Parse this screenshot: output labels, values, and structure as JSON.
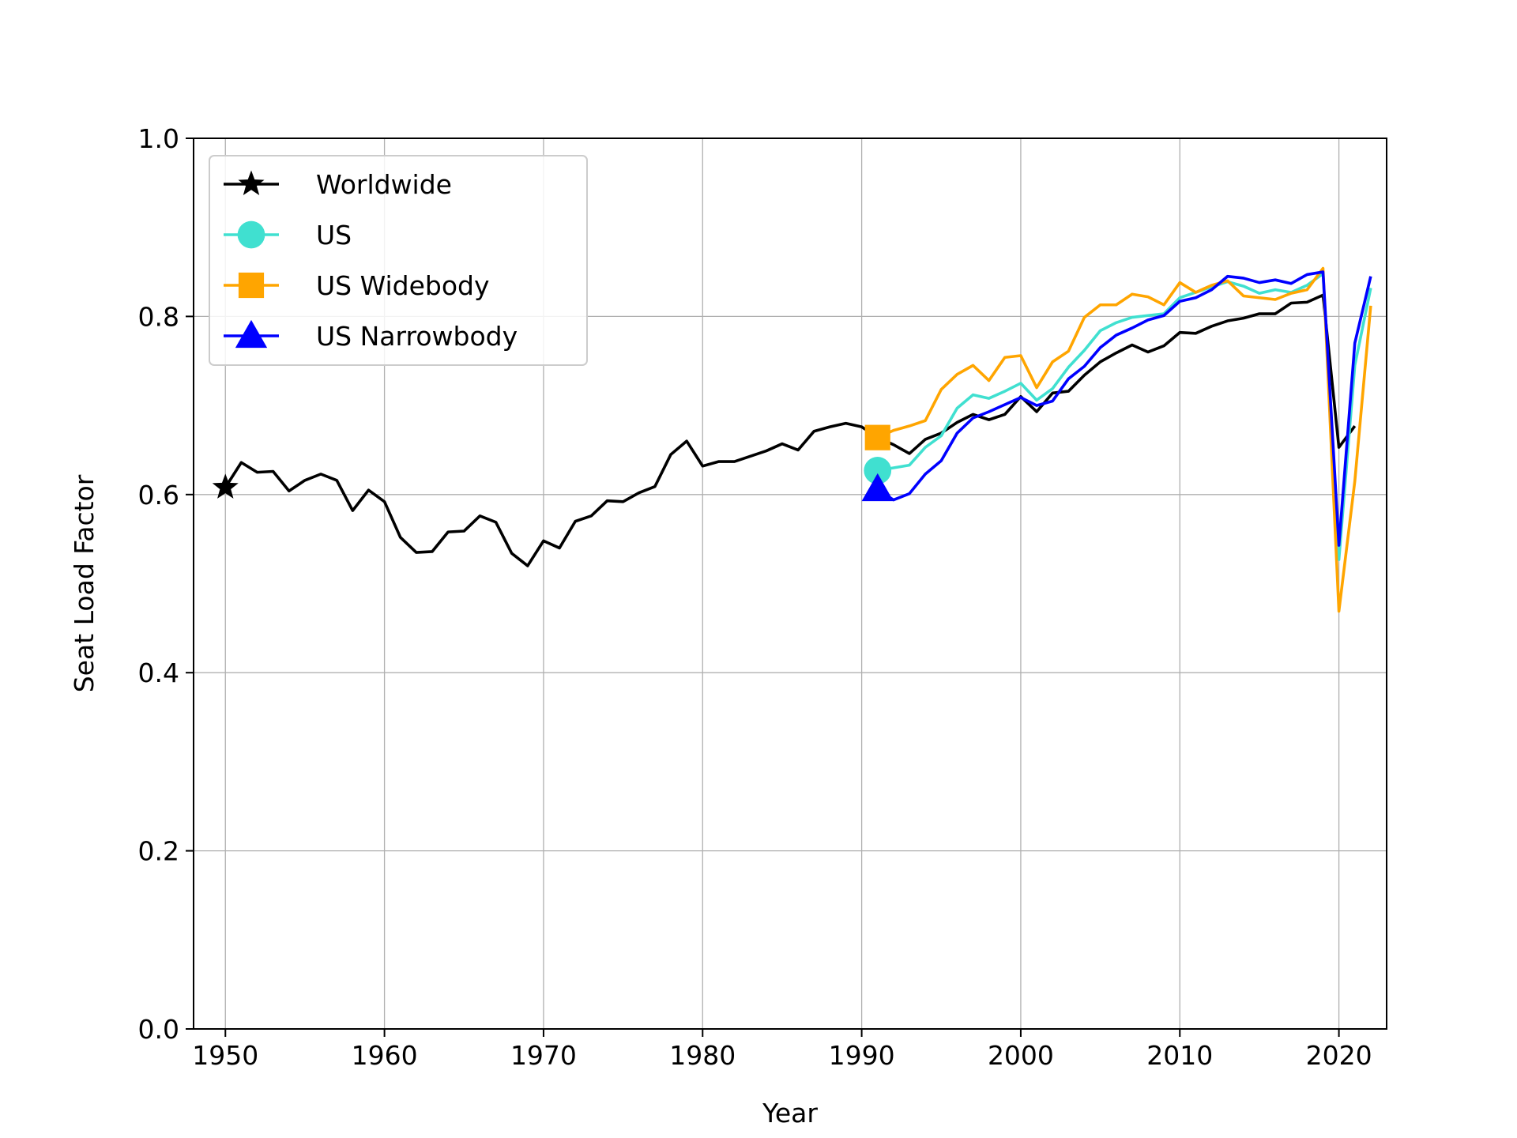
{
  "chart_data": {
    "type": "line",
    "xlabel": "Year",
    "ylabel": "Seat Load Factor",
    "xlim": [
      1948,
      2023
    ],
    "ylim": [
      0.0,
      1.0
    ],
    "x_ticks": [
      1950,
      1960,
      1970,
      1980,
      1990,
      2000,
      2010,
      2020
    ],
    "y_ticks": [
      0.0,
      0.2,
      0.4,
      0.6,
      0.8,
      1.0
    ],
    "y_tick_labels": [
      "0.0",
      "0.2",
      "0.4",
      "0.6",
      "0.8",
      "1.0"
    ],
    "grid": true,
    "legend_position": "top-left",
    "series": [
      {
        "name": "Worldwide",
        "color": "#000000",
        "marker": "star",
        "x": [
          1950,
          1951,
          1952,
          1953,
          1954,
          1955,
          1956,
          1957,
          1958,
          1959,
          1960,
          1961,
          1962,
          1963,
          1964,
          1965,
          1966,
          1967,
          1968,
          1969,
          1970,
          1971,
          1972,
          1973,
          1974,
          1975,
          1976,
          1977,
          1978,
          1979,
          1980,
          1981,
          1982,
          1983,
          1984,
          1985,
          1986,
          1987,
          1988,
          1989,
          1990,
          1991,
          1992,
          1993,
          1994,
          1995,
          1996,
          1997,
          1998,
          1999,
          2000,
          2001,
          2002,
          2003,
          2004,
          2005,
          2006,
          2007,
          2008,
          2009,
          2010,
          2011,
          2012,
          2013,
          2014,
          2015,
          2016,
          2017,
          2018,
          2019,
          2020,
          2021
        ],
        "values": [
          0.608,
          0.636,
          0.625,
          0.626,
          0.604,
          0.616,
          0.623,
          0.616,
          0.582,
          0.605,
          0.592,
          0.552,
          0.535,
          0.536,
          0.558,
          0.559,
          0.576,
          0.569,
          0.534,
          0.52,
          0.548,
          0.54,
          0.57,
          0.576,
          0.593,
          0.592,
          0.602,
          0.609,
          0.645,
          0.66,
          0.632,
          0.637,
          0.637,
          0.643,
          0.649,
          0.657,
          0.65,
          0.671,
          0.676,
          0.68,
          0.676,
          0.664,
          0.656,
          0.646,
          0.662,
          0.669,
          0.681,
          0.69,
          0.684,
          0.69,
          0.71,
          0.693,
          0.714,
          0.716,
          0.734,
          0.749,
          0.759,
          0.768,
          0.76,
          0.767,
          0.782,
          0.781,
          0.789,
          0.795,
          0.798,
          0.803,
          0.803,
          0.815,
          0.816,
          0.824,
          0.653,
          0.677
        ]
      },
      {
        "name": "US",
        "color": "#40e0d0",
        "marker": "circle",
        "x": [
          1991,
          1992,
          1993,
          1994,
          1995,
          1996,
          1997,
          1998,
          1999,
          2000,
          2001,
          2002,
          2003,
          2004,
          2005,
          2006,
          2007,
          2008,
          2009,
          2010,
          2011,
          2012,
          2013,
          2014,
          2015,
          2016,
          2017,
          2018,
          2019,
          2020,
          2021,
          2022
        ],
        "values": [
          0.627,
          0.63,
          0.633,
          0.653,
          0.666,
          0.697,
          0.712,
          0.708,
          0.716,
          0.725,
          0.706,
          0.719,
          0.743,
          0.762,
          0.784,
          0.793,
          0.799,
          0.801,
          0.803,
          0.821,
          0.827,
          0.833,
          0.839,
          0.834,
          0.826,
          0.83,
          0.827,
          0.835,
          0.848,
          0.527,
          0.745,
          0.832
        ]
      },
      {
        "name": "US Widebody",
        "color": "#ffa500",
        "marker": "square",
        "x": [
          1991,
          1992,
          1993,
          1994,
          1995,
          1996,
          1997,
          1998,
          1999,
          2000,
          2001,
          2002,
          2003,
          2004,
          2005,
          2006,
          2007,
          2008,
          2009,
          2010,
          2011,
          2012,
          2013,
          2014,
          2015,
          2016,
          2017,
          2018,
          2019,
          2020,
          2021,
          2022
        ],
        "values": [
          0.664,
          0.672,
          0.677,
          0.683,
          0.718,
          0.735,
          0.745,
          0.728,
          0.754,
          0.756,
          0.72,
          0.749,
          0.761,
          0.799,
          0.813,
          0.813,
          0.825,
          0.822,
          0.813,
          0.838,
          0.827,
          0.835,
          0.84,
          0.823,
          0.821,
          0.819,
          0.826,
          0.83,
          0.854,
          0.469,
          0.615,
          0.812
        ]
      },
      {
        "name": "US Narrowbody",
        "color": "#0000ff",
        "marker": "triangle",
        "x": [
          1991,
          1992,
          1993,
          1994,
          1995,
          1996,
          1997,
          1998,
          1999,
          2000,
          2001,
          2002,
          2003,
          2004,
          2005,
          2006,
          2007,
          2008,
          2009,
          2010,
          2011,
          2012,
          2013,
          2014,
          2015,
          2016,
          2017,
          2018,
          2019,
          2020,
          2021,
          2022
        ],
        "values": [
          0.606,
          0.594,
          0.601,
          0.623,
          0.638,
          0.669,
          0.686,
          0.693,
          0.701,
          0.709,
          0.7,
          0.705,
          0.73,
          0.744,
          0.765,
          0.779,
          0.787,
          0.796,
          0.801,
          0.817,
          0.821,
          0.83,
          0.845,
          0.843,
          0.838,
          0.841,
          0.837,
          0.847,
          0.85,
          0.543,
          0.77,
          0.845
        ]
      }
    ]
  }
}
